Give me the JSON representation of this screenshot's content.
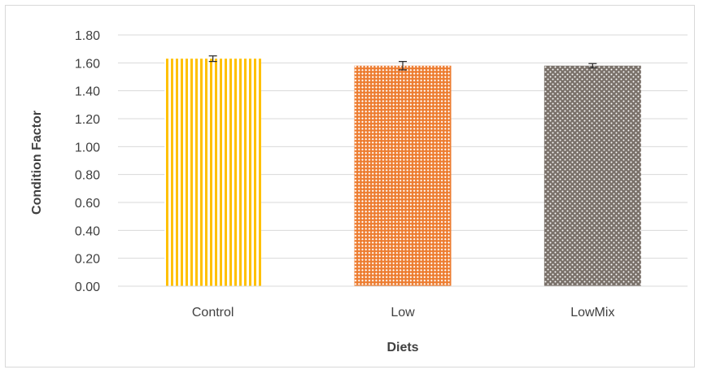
{
  "chart_data": {
    "type": "bar",
    "categories": [
      "Control",
      "Low",
      "LowMix"
    ],
    "values": [
      1.63,
      1.58,
      1.58
    ],
    "errors": [
      0.02,
      0.03,
      0.015
    ],
    "xlabel": "Diets",
    "ylabel": "Condition Factor",
    "ylim": [
      0,
      1.8
    ],
    "yticks": [
      "0.00",
      "0.20",
      "0.40",
      "0.60",
      "0.80",
      "1.00",
      "1.20",
      "1.40",
      "1.60",
      "1.80"
    ],
    "grid": true,
    "legend": "none",
    "colors": {
      "Control": "#ffc000",
      "Low": "#ed7d31",
      "LowMix": "#7a716a",
      "grid": "#d9d9d9",
      "text": "#404040"
    },
    "patterns": {
      "Control": "vertical-stripes",
      "Low": "diagonal-checker",
      "LowMix": "dots"
    }
  }
}
